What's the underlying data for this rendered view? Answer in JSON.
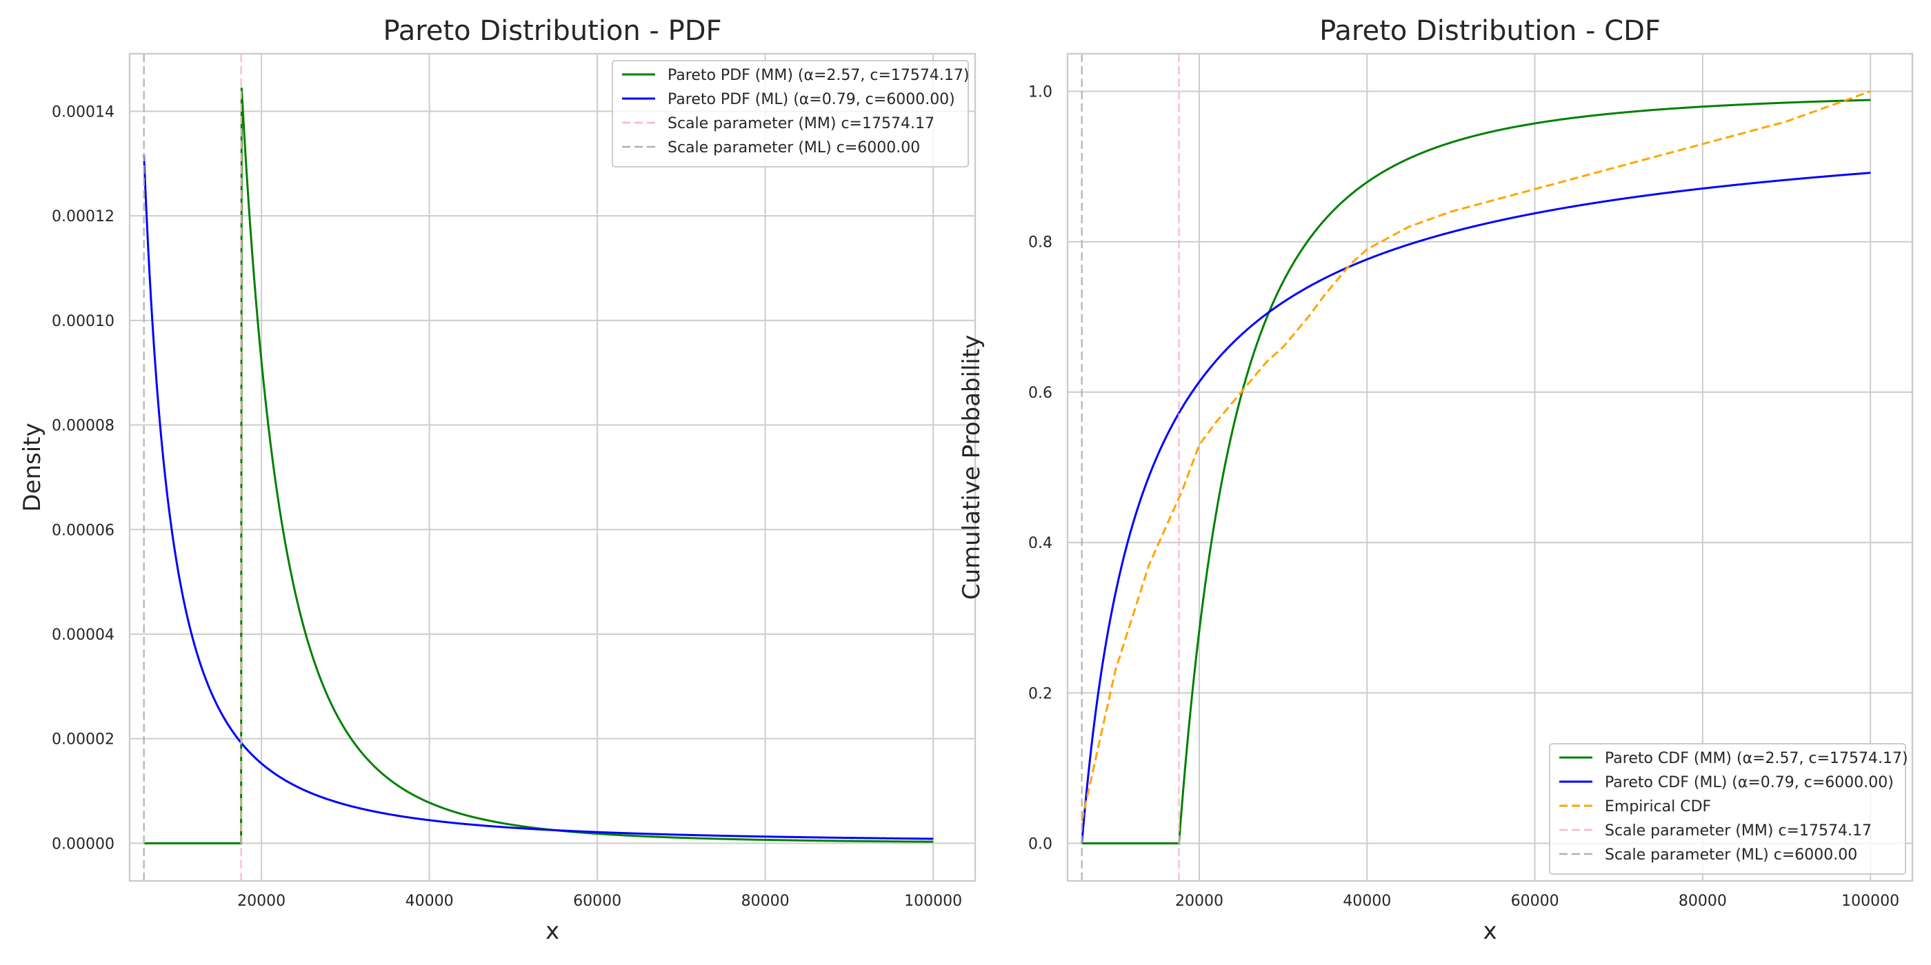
{
  "chart_data": [
    {
      "type": "line",
      "title": "Pareto Distribution - PDF",
      "xlabel": "x",
      "ylabel": "Density",
      "xlim": [
        4300,
        105000
      ],
      "ylim": [
        -7.2e-06,
        0.000151
      ],
      "xticks": [
        20000,
        40000,
        60000,
        80000,
        100000
      ],
      "xtick_labels": [
        "20000",
        "40000",
        "60000",
        "80000",
        "100000"
      ],
      "yticks": [
        0,
        2e-05,
        4e-05,
        6e-05,
        8e-05,
        0.0001,
        0.00012,
        0.00014
      ],
      "ytick_labels": [
        "0.00000",
        "0.00002",
        "0.00004",
        "0.00006",
        "0.00008",
        "0.00010",
        "0.00012",
        "0.00014"
      ],
      "grid": true,
      "legend_position": "top-right",
      "x_range": [
        6000,
        100000
      ],
      "series": [
        {
          "name": "Pareto PDF (MM) (α=2.57, c=17574.17)",
          "dist": "pareto-pdf",
          "alpha": 2.57,
          "c": 17574.17,
          "color": "#008000",
          "dash": "solid"
        },
        {
          "name": "Pareto PDF (ML) (α=0.79, c=6000.00)",
          "dist": "pareto-pdf",
          "alpha": 0.79,
          "c": 6000.0,
          "color": "#0000ff",
          "dash": "solid"
        },
        {
          "name": "Scale parameter (MM) c=17574.17",
          "type": "vline",
          "x": 17574.17,
          "color": "#ffb6c1",
          "dash": "dashed"
        },
        {
          "name": "Scale parameter (ML) c=6000.00",
          "type": "vline",
          "x": 6000.0,
          "color": "#b0b0b0",
          "dash": "dashed"
        }
      ]
    },
    {
      "type": "line",
      "title": "Pareto Distribution - CDF",
      "xlabel": "x",
      "ylabel": "Cumulative Probability",
      "xlim": [
        4300,
        105000
      ],
      "ylim": [
        -0.05,
        1.05
      ],
      "xticks": [
        20000,
        40000,
        60000,
        80000,
        100000
      ],
      "xtick_labels": [
        "20000",
        "40000",
        "60000",
        "80000",
        "100000"
      ],
      "yticks": [
        0,
        0.2,
        0.4,
        0.6,
        0.8,
        1.0
      ],
      "ytick_labels": [
        "0.0",
        "0.2",
        "0.4",
        "0.6",
        "0.8",
        "1.0"
      ],
      "grid": true,
      "legend_position": "bottom-right",
      "x_range": [
        6000,
        100000
      ],
      "series": [
        {
          "name": "Pareto CDF (MM) (α=2.57, c=17574.17)",
          "dist": "pareto-cdf",
          "alpha": 2.57,
          "c": 17574.17,
          "color": "#008000",
          "dash": "solid"
        },
        {
          "name": "Pareto CDF (ML) (α=0.79, c=6000.00)",
          "dist": "pareto-cdf",
          "alpha": 0.79,
          "c": 6000.0,
          "color": "#0000ff",
          "dash": "solid"
        },
        {
          "name": "Empirical CDF",
          "type": "points",
          "color": "#ffa500",
          "dash": "dashed",
          "x": [
            6000,
            8000,
            10000,
            12000,
            14000,
            16000,
            18000,
            20000,
            22000,
            25000,
            28000,
            30000,
            33000,
            35000,
            38000,
            40000,
            45000,
            50000,
            55000,
            60000,
            65000,
            70000,
            75000,
            80000,
            85000,
            90000,
            95000,
            100000
          ],
          "y": [
            0.03,
            0.13,
            0.23,
            0.3,
            0.37,
            0.42,
            0.47,
            0.53,
            0.56,
            0.6,
            0.64,
            0.66,
            0.7,
            0.73,
            0.77,
            0.79,
            0.82,
            0.84,
            0.855,
            0.87,
            0.885,
            0.9,
            0.915,
            0.93,
            0.945,
            0.96,
            0.98,
            1.0
          ]
        },
        {
          "name": "Scale parameter (MM) c=17574.17",
          "type": "vline",
          "x": 17574.17,
          "color": "#ffb6c1",
          "dash": "dashed"
        },
        {
          "name": "Scale parameter (ML) c=6000.00",
          "type": "vline",
          "x": 6000.0,
          "color": "#b0b0b0",
          "dash": "dashed"
        }
      ]
    }
  ]
}
